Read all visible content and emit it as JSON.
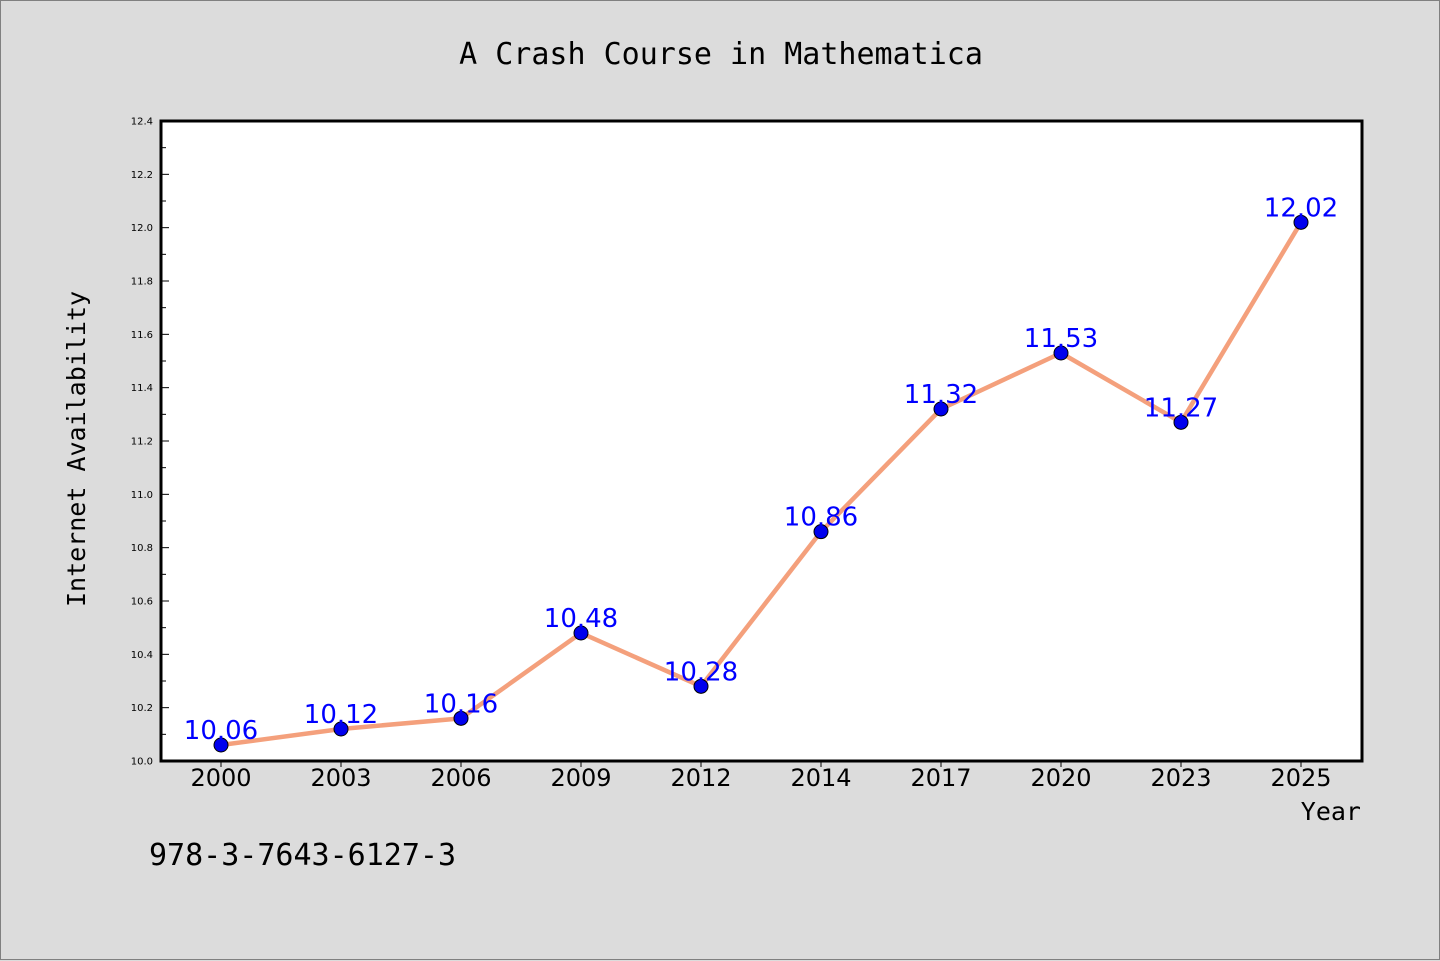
{
  "chart_data": {
    "type": "line",
    "title": "A Crash Course in Mathematica",
    "xlabel": "Year",
    "ylabel": "Internet Availability",
    "categories": [
      "2000",
      "2003",
      "2006",
      "2009",
      "2012",
      "2014",
      "2017",
      "2020",
      "2023",
      "2025"
    ],
    "series": [
      {
        "values": [
          10.06,
          10.12,
          10.16,
          10.48,
          10.28,
          10.86,
          11.32,
          11.53,
          11.27,
          12.02
        ],
        "data_labels": [
          "10.06",
          "10.12",
          "10.16",
          "10.48",
          "10.28",
          "10.86",
          "11.32",
          "11.53",
          "11.27",
          "12.02"
        ],
        "line_color": "#f4a07c",
        "marker_color": "#0000ee",
        "label_color": "#0000ff"
      }
    ],
    "ylim": [
      10.0,
      12.4
    ],
    "yticks": [
      "10.0",
      "10.2",
      "10.4",
      "10.6",
      "10.8",
      "11.0",
      "11.2",
      "11.4",
      "11.6",
      "11.8",
      "12.0",
      "12.2",
      "12.4"
    ],
    "grid": false,
    "legend": "none",
    "background": "#dcdcdc",
    "plot_background": "#ffffff"
  },
  "footnote": "978-3-7643-6127-3"
}
